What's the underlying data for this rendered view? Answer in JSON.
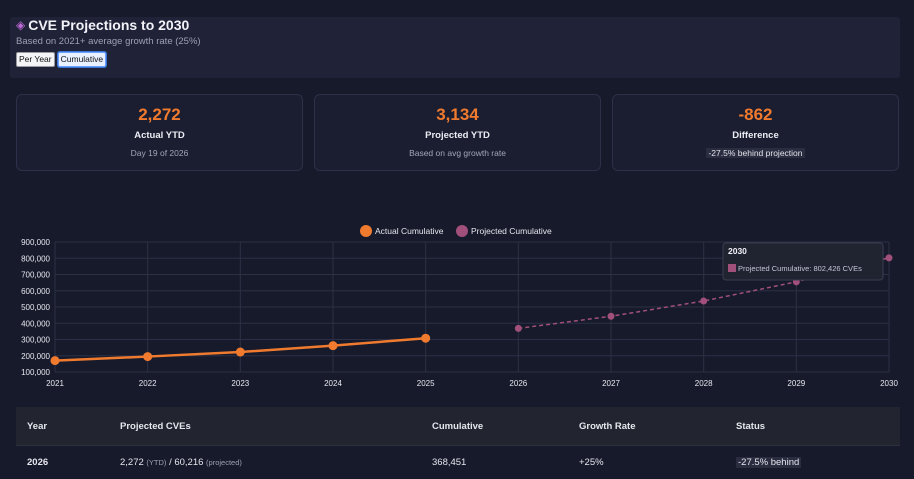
{
  "header": {
    "icon": "rocket-icon",
    "title": "CVE Projections to 2030",
    "subtitle": "Based on 2021+ average growth rate (25%)",
    "toggles": [
      {
        "label": "Per Year",
        "active": false
      },
      {
        "label": "Cumulative",
        "active": true
      }
    ]
  },
  "cards": [
    {
      "value": "2,272",
      "label": "Actual YTD",
      "note": "Day 19 of 2026"
    },
    {
      "value": "3,134",
      "label": "Projected YTD",
      "note": "Based on avg growth rate"
    },
    {
      "value": "-862",
      "label": "Difference",
      "note": "-27.5% behind projection"
    }
  ],
  "colors": {
    "accent": "#f07a2e",
    "projected": "#a0507a",
    "background": "#171a2b"
  },
  "chart_data": {
    "type": "line",
    "title": "",
    "x": [
      "2021",
      "2022",
      "2023",
      "2024",
      "2025",
      "2026",
      "2027",
      "2028",
      "2029",
      "2030"
    ],
    "series": [
      {
        "name": "Actual Cumulative",
        "values": [
          170000,
          195000,
          223000,
          262000,
          308000,
          null,
          null,
          null,
          null,
          null
        ]
      },
      {
        "name": "Projected Cumulative",
        "values": [
          null,
          null,
          null,
          null,
          null,
          368451,
          443000,
          537000,
          655000,
          802426
        ]
      }
    ],
    "yticks": [
      100000,
      200000,
      300000,
      400000,
      500000,
      600000,
      700000,
      800000,
      900000
    ],
    "ytick_labels": [
      "100,000",
      "200,000",
      "300,000",
      "400,000",
      "500,000",
      "600,000",
      "700,000",
      "800,000",
      "900,000"
    ],
    "ylim": [
      100000,
      900000
    ],
    "tooltip": {
      "title": "2030",
      "text": "Projected Cumulative: 802,426 CVEs"
    }
  },
  "table": {
    "headers": [
      "Year",
      "Projected CVEs",
      "Cumulative",
      "Growth Rate",
      "Status"
    ],
    "rows": [
      {
        "year": "2026",
        "actual": "2,272",
        "actual_note": "(YTD)",
        "sep": "/",
        "projected": "60,216",
        "projected_note": "(projected)",
        "cumulative": "368,451",
        "growth": "+25%",
        "status": "-27.5% behind"
      }
    ]
  }
}
